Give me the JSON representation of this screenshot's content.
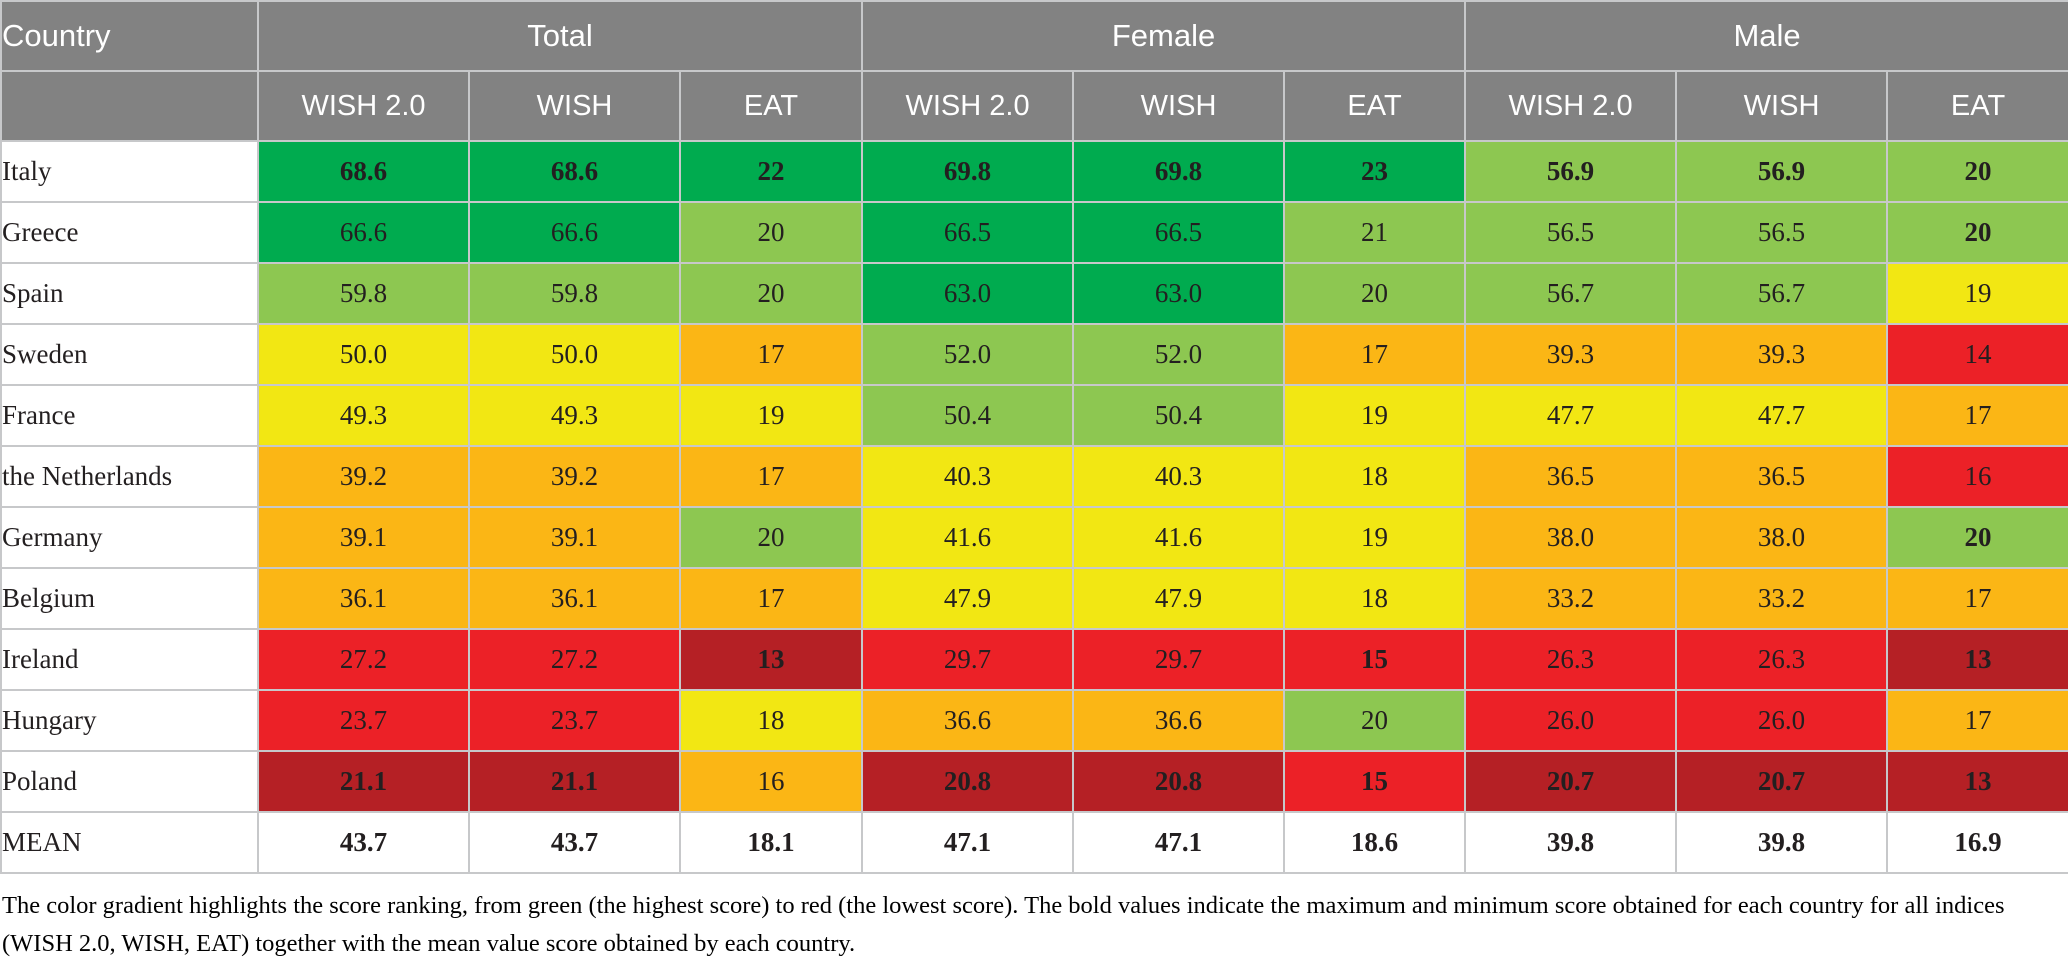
{
  "chart_data": {
    "type": "table",
    "subtype": "heatmap-table",
    "legend": "color gradient from green (highest score) to red (lowest score)",
    "colors": {
      "green": "#00AB4F",
      "lightgreen": "#8DC751",
      "yellow": "#F2E713",
      "orange": "#FBB615",
      "red": "#EC2127",
      "darkred": "#B52025",
      "header_bg": "#828282",
      "header_text": "#ffffff",
      "border": "#c7c8ca"
    },
    "header": {
      "country_label": "Country",
      "groups": [
        {
          "label": "Total",
          "subcolumns": [
            "WISH 2.0",
            "WISH",
            "EAT"
          ]
        },
        {
          "label": "Female",
          "subcolumns": [
            "WISH 2.0",
            "WISH",
            "EAT"
          ]
        },
        {
          "label": "Male",
          "subcolumns": [
            "WISH 2.0",
            "WISH",
            "EAT"
          ]
        }
      ]
    },
    "rows": [
      {
        "country": "Italy",
        "cells": [
          {
            "v": "68.6",
            "c": "green",
            "b": true
          },
          {
            "v": "68.6",
            "c": "green",
            "b": true
          },
          {
            "v": "22",
            "c": "green",
            "b": true
          },
          {
            "v": "69.8",
            "c": "green",
            "b": true
          },
          {
            "v": "69.8",
            "c": "green",
            "b": true
          },
          {
            "v": "23",
            "c": "green",
            "b": true
          },
          {
            "v": "56.9",
            "c": "lightgreen",
            "b": true
          },
          {
            "v": "56.9",
            "c": "lightgreen",
            "b": true
          },
          {
            "v": "20",
            "c": "lightgreen",
            "b": true
          }
        ]
      },
      {
        "country": "Greece",
        "cells": [
          {
            "v": "66.6",
            "c": "green",
            "b": false
          },
          {
            "v": "66.6",
            "c": "green",
            "b": false
          },
          {
            "v": "20",
            "c": "lightgreen",
            "b": false
          },
          {
            "v": "66.5",
            "c": "green",
            "b": false
          },
          {
            "v": "66.5",
            "c": "green",
            "b": false
          },
          {
            "v": "21",
            "c": "lightgreen",
            "b": false
          },
          {
            "v": "56.5",
            "c": "lightgreen",
            "b": false
          },
          {
            "v": "56.5",
            "c": "lightgreen",
            "b": false
          },
          {
            "v": "20",
            "c": "lightgreen",
            "b": true
          }
        ]
      },
      {
        "country": "Spain",
        "cells": [
          {
            "v": "59.8",
            "c": "lightgreen",
            "b": false
          },
          {
            "v": "59.8",
            "c": "lightgreen",
            "b": false
          },
          {
            "v": "20",
            "c": "lightgreen",
            "b": false
          },
          {
            "v": "63.0",
            "c": "green",
            "b": false
          },
          {
            "v": "63.0",
            "c": "green",
            "b": false
          },
          {
            "v": "20",
            "c": "lightgreen",
            "b": false
          },
          {
            "v": "56.7",
            "c": "lightgreen",
            "b": false
          },
          {
            "v": "56.7",
            "c": "lightgreen",
            "b": false
          },
          {
            "v": "19",
            "c": "yellow",
            "b": false
          }
        ]
      },
      {
        "country": "Sweden",
        "cells": [
          {
            "v": "50.0",
            "c": "yellow",
            "b": false
          },
          {
            "v": "50.0",
            "c": "yellow",
            "b": false
          },
          {
            "v": "17",
            "c": "orange",
            "b": false
          },
          {
            "v": "52.0",
            "c": "lightgreen",
            "b": false
          },
          {
            "v": "52.0",
            "c": "lightgreen",
            "b": false
          },
          {
            "v": "17",
            "c": "orange",
            "b": false
          },
          {
            "v": "39.3",
            "c": "orange",
            "b": false
          },
          {
            "v": "39.3",
            "c": "orange",
            "b": false
          },
          {
            "v": "14",
            "c": "red",
            "b": false
          }
        ]
      },
      {
        "country": "France",
        "cells": [
          {
            "v": "49.3",
            "c": "yellow",
            "b": false
          },
          {
            "v": "49.3",
            "c": "yellow",
            "b": false
          },
          {
            "v": "19",
            "c": "yellow",
            "b": false
          },
          {
            "v": "50.4",
            "c": "lightgreen",
            "b": false
          },
          {
            "v": "50.4",
            "c": "lightgreen",
            "b": false
          },
          {
            "v": "19",
            "c": "yellow",
            "b": false
          },
          {
            "v": "47.7",
            "c": "yellow",
            "b": false
          },
          {
            "v": "47.7",
            "c": "yellow",
            "b": false
          },
          {
            "v": "17",
            "c": "orange",
            "b": false
          }
        ]
      },
      {
        "country": "the Netherlands",
        "cells": [
          {
            "v": "39.2",
            "c": "orange",
            "b": false
          },
          {
            "v": "39.2",
            "c": "orange",
            "b": false
          },
          {
            "v": "17",
            "c": "orange",
            "b": false
          },
          {
            "v": "40.3",
            "c": "yellow",
            "b": false
          },
          {
            "v": "40.3",
            "c": "yellow",
            "b": false
          },
          {
            "v": "18",
            "c": "yellow",
            "b": false
          },
          {
            "v": "36.5",
            "c": "orange",
            "b": false
          },
          {
            "v": "36.5",
            "c": "orange",
            "b": false
          },
          {
            "v": "16",
            "c": "red",
            "b": false
          }
        ]
      },
      {
        "country": "Germany",
        "cells": [
          {
            "v": "39.1",
            "c": "orange",
            "b": false
          },
          {
            "v": "39.1",
            "c": "orange",
            "b": false
          },
          {
            "v": "20",
            "c": "lightgreen",
            "b": false
          },
          {
            "v": "41.6",
            "c": "yellow",
            "b": false
          },
          {
            "v": "41.6",
            "c": "yellow",
            "b": false
          },
          {
            "v": "19",
            "c": "yellow",
            "b": false
          },
          {
            "v": "38.0",
            "c": "orange",
            "b": false
          },
          {
            "v": "38.0",
            "c": "orange",
            "b": false
          },
          {
            "v": "20",
            "c": "lightgreen",
            "b": true
          }
        ]
      },
      {
        "country": "Belgium",
        "cells": [
          {
            "v": "36.1",
            "c": "orange",
            "b": false
          },
          {
            "v": "36.1",
            "c": "orange",
            "b": false
          },
          {
            "v": "17",
            "c": "orange",
            "b": false
          },
          {
            "v": "47.9",
            "c": "yellow",
            "b": false
          },
          {
            "v": "47.9",
            "c": "yellow",
            "b": false
          },
          {
            "v": "18",
            "c": "yellow",
            "b": false
          },
          {
            "v": "33.2",
            "c": "orange",
            "b": false
          },
          {
            "v": "33.2",
            "c": "orange",
            "b": false
          },
          {
            "v": "17",
            "c": "orange",
            "b": false
          }
        ]
      },
      {
        "country": "Ireland",
        "cells": [
          {
            "v": "27.2",
            "c": "red",
            "b": false
          },
          {
            "v": "27.2",
            "c": "red",
            "b": false
          },
          {
            "v": "13",
            "c": "darkred",
            "b": true
          },
          {
            "v": "29.7",
            "c": "red",
            "b": false
          },
          {
            "v": "29.7",
            "c": "red",
            "b": false
          },
          {
            "v": "15",
            "c": "red",
            "b": true
          },
          {
            "v": "26.3",
            "c": "red",
            "b": false
          },
          {
            "v": "26.3",
            "c": "red",
            "b": false
          },
          {
            "v": "13",
            "c": "darkred",
            "b": true
          }
        ]
      },
      {
        "country": "Hungary",
        "cells": [
          {
            "v": "23.7",
            "c": "red",
            "b": false
          },
          {
            "v": "23.7",
            "c": "red",
            "b": false
          },
          {
            "v": "18",
            "c": "yellow",
            "b": false
          },
          {
            "v": "36.6",
            "c": "orange",
            "b": false
          },
          {
            "v": "36.6",
            "c": "orange",
            "b": false
          },
          {
            "v": "20",
            "c": "lightgreen",
            "b": false
          },
          {
            "v": "26.0",
            "c": "red",
            "b": false
          },
          {
            "v": "26.0",
            "c": "red",
            "b": false
          },
          {
            "v": "17",
            "c": "orange",
            "b": false
          }
        ]
      },
      {
        "country": "Poland",
        "cells": [
          {
            "v": "21.1",
            "c": "darkred",
            "b": true
          },
          {
            "v": "21.1",
            "c": "darkred",
            "b": true
          },
          {
            "v": "16",
            "c": "orange",
            "b": false
          },
          {
            "v": "20.8",
            "c": "darkred",
            "b": true
          },
          {
            "v": "20.8",
            "c": "darkred",
            "b": true
          },
          {
            "v": "15",
            "c": "red",
            "b": true
          },
          {
            "v": "20.7",
            "c": "darkred",
            "b": true
          },
          {
            "v": "20.7",
            "c": "darkred",
            "b": true
          },
          {
            "v": "13",
            "c": "darkred",
            "b": true
          }
        ]
      }
    ],
    "mean_row": {
      "label": "MEAN",
      "values": [
        "43.7",
        "43.7",
        "18.1",
        "47.1",
        "47.1",
        "18.6",
        "39.8",
        "39.8",
        "16.9"
      ]
    },
    "caption": "The color gradient highlights the score ranking, from green (the highest score) to red (the lowest score). The bold values indicate the maximum and minimum score obtained for each country for all indices (WISH 2.0, WISH, EAT) together with the mean value score obtained by each country."
  }
}
